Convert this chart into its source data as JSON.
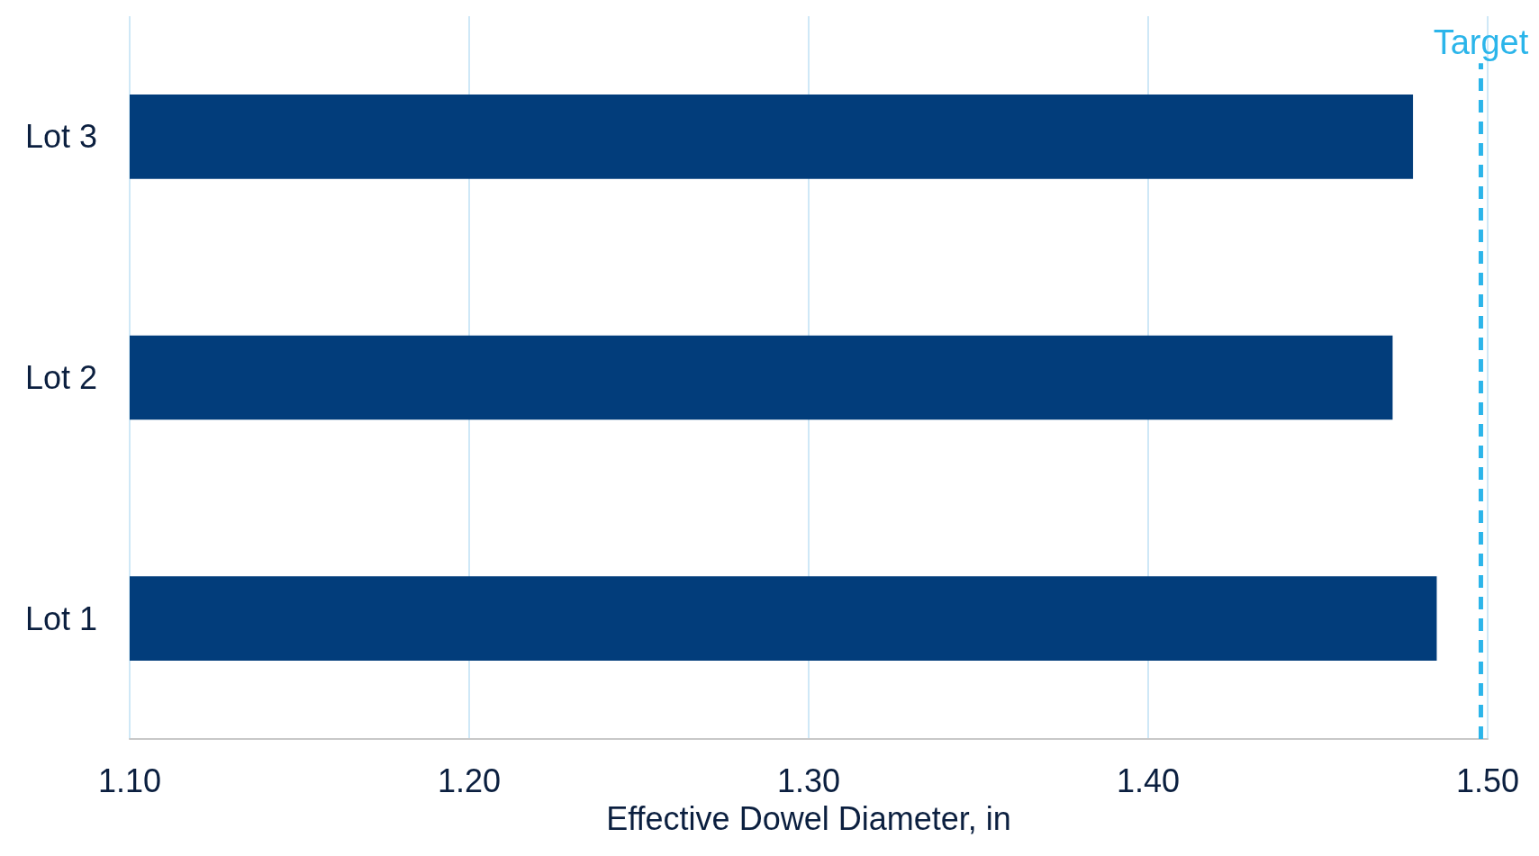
{
  "chart_data": {
    "type": "bar",
    "orientation": "horizontal",
    "xlabel": "Effective Dowel Diameter, in",
    "categories": [
      "Lot 3",
      "Lot 2",
      "Lot 1"
    ],
    "values": [
      1.478,
      1.472,
      1.485
    ],
    "color": "#023d7b",
    "xlim": [
      1.1,
      1.5
    ],
    "xticks": [
      {
        "value": 1.1,
        "label": "1.10"
      },
      {
        "value": 1.2,
        "label": "1.20"
      },
      {
        "value": 1.3,
        "label": "1.30"
      },
      {
        "value": 1.4,
        "label": "1.40"
      },
      {
        "value": 1.5,
        "label": "1.50"
      }
    ],
    "ref_lines": [
      {
        "axis": "x",
        "value": 1.498,
        "label": "Target",
        "color": "#2bb5ea",
        "line_style": "dashed"
      }
    ],
    "grid": "x"
  }
}
